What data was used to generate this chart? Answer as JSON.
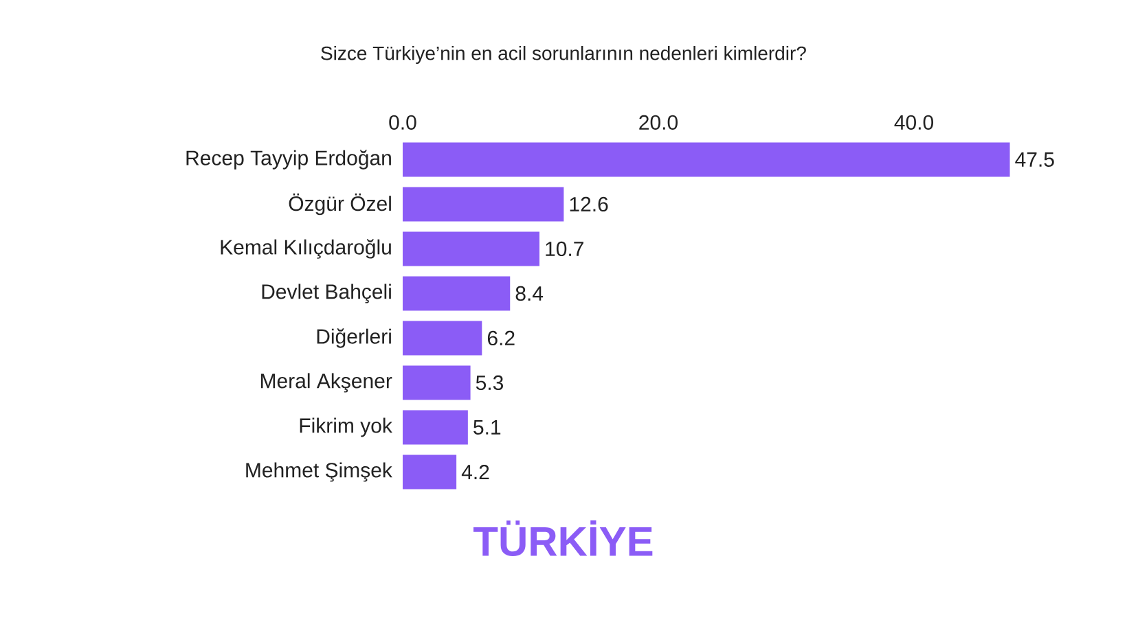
{
  "chart_data": {
    "type": "bar",
    "orientation": "horizontal",
    "title": "Sizce Türkiye’nin en acil sorunlarının nedenleri kimlerdir?",
    "categories": [
      "Recep Tayyip Erdoğan",
      "Özgür Özel",
      "Kemal Kılıçdaroğlu",
      "Devlet Bahçeli",
      "Diğerleri",
      "Meral Akşener",
      "Fikrim yok",
      "Mehmet Şimşek"
    ],
    "values": [
      47.5,
      12.6,
      10.7,
      8.4,
      6.2,
      5.3,
      5.1,
      4.2
    ],
    "color": "#8b5cf6",
    "xlim": [
      0,
      47.5
    ],
    "xticks": [
      {
        "value": 0,
        "label": "0.0"
      },
      {
        "value": 20,
        "label": "20.0"
      },
      {
        "value": 40,
        "label": "40.0"
      }
    ],
    "data_labels": true,
    "grid": false,
    "annotations": [
      "TÜRKİYE"
    ]
  }
}
